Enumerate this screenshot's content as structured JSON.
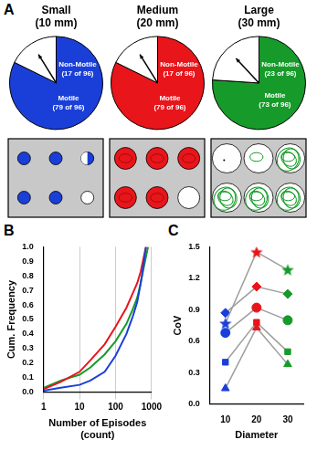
{
  "panel_labels": [
    "A",
    "B",
    "C"
  ],
  "chart_data": [
    {
      "type": "pie",
      "title": "Small",
      "subtitle": "(10 mm)",
      "categories": [
        "Motile",
        "Non-Motile"
      ],
      "values": [
        79,
        17
      ],
      "value_labels": [
        "(79 of 96)",
        "(17 of 96)"
      ],
      "colors": [
        "#1a3fd9",
        "#ffffff"
      ],
      "data_labels": true
    },
    {
      "type": "pie",
      "title": "Medium",
      "subtitle": "(20 mm)",
      "categories": [
        "Motile",
        "Non-Motile"
      ],
      "values": [
        79,
        17
      ],
      "value_labels": [
        "(79 of 96)",
        "(17 of 96)"
      ],
      "colors": [
        "#e8151b",
        "#ffffff"
      ],
      "data_labels": true
    },
    {
      "type": "pie",
      "title": "Large",
      "subtitle": "(30 mm)",
      "categories": [
        "Motile",
        "Non-Motile"
      ],
      "values": [
        73,
        23
      ],
      "value_labels": [
        "(73 of 96)",
        "(23 of 96)"
      ],
      "colors": [
        "#169b2a",
        "#ffffff"
      ],
      "data_labels": true
    },
    {
      "type": "line",
      "xlabel": "Number of Episodes (count)",
      "ylabel": "Cum. Frequency",
      "log": "x",
      "grid": true,
      "xlim": [
        1,
        1000
      ],
      "xticks": [
        1,
        10,
        100,
        1000
      ],
      "ylim": [
        0,
        1
      ],
      "yticks": [
        {
          "value": 0,
          "label": "0.0"
        },
        0.1,
        0.2,
        0.3,
        0.4,
        0.5,
        0.6,
        0.7,
        0.8,
        0.9,
        {
          "value": 1,
          "label": "1.0"
        }
      ],
      "series": [
        {
          "color": "#1a3fd9",
          "x": [
            1,
            3,
            10,
            20,
            50,
            100,
            200,
            300,
            400,
            500,
            600,
            700
          ],
          "values": [
            0.01,
            0.03,
            0.05,
            0.08,
            0.14,
            0.25,
            0.4,
            0.52,
            0.62,
            0.75,
            0.88,
            1.0
          ]
        },
        {
          "color": "#e8151b",
          "x": [
            1,
            3,
            10,
            20,
            50,
            100,
            200,
            300,
            400,
            500,
            700
          ],
          "values": [
            0.02,
            0.07,
            0.14,
            0.22,
            0.33,
            0.45,
            0.58,
            0.68,
            0.75,
            0.83,
            1.0
          ]
        },
        {
          "color": "#169b2a",
          "x": [
            1,
            3,
            10,
            20,
            50,
            100,
            200,
            300,
            400,
            500,
            600,
            800
          ],
          "values": [
            0.03,
            0.08,
            0.12,
            0.17,
            0.26,
            0.35,
            0.47,
            0.57,
            0.65,
            0.75,
            0.85,
            1.0
          ]
        }
      ]
    },
    {
      "type": "line",
      "xlabel": "Diameter",
      "ylabel": "CoV",
      "grid": false,
      "x": [
        10,
        20,
        30
      ],
      "xlim": [
        5,
        35
      ],
      "xticks": [
        10,
        20,
        30
      ],
      "ylim": [
        0,
        1.5
      ],
      "yticks": [
        {
          "value": 0,
          "label": "0.0"
        },
        0.3,
        0.6,
        0.9,
        1.2,
        1.5
      ],
      "colors": [
        "#1a3fd9",
        "#e8151b",
        "#169b2a"
      ],
      "series": [
        {
          "marker": "star",
          "color": "#9e9e9e",
          "values": [
            0.77,
            1.45,
            1.28
          ]
        },
        {
          "marker": "diamond",
          "color": "#9e9e9e",
          "values": [
            0.87,
            1.12,
            1.05
          ]
        },
        {
          "marker": "circle",
          "color": "#9e9e9e",
          "values": [
            0.68,
            0.92,
            0.8
          ]
        },
        {
          "marker": "square",
          "color": "#9e9e9e",
          "values": [
            0.4,
            0.78,
            0.5
          ]
        },
        {
          "marker": "triangle",
          "color": "#9e9e9e",
          "values": [
            0.15,
            0.73,
            0.38
          ]
        }
      ]
    }
  ]
}
